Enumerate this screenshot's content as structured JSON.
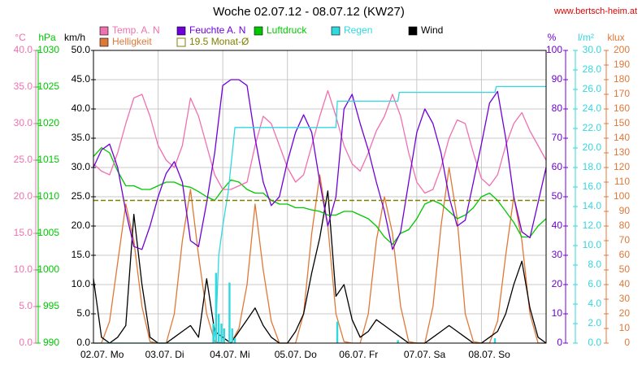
{
  "chart_data": {
    "type": "line",
    "title": "Woche 02.07.12 - 08.07.12 (KW27)",
    "source": "www.bertsch-heim.at",
    "grid": true,
    "xlim": [
      0,
      168
    ],
    "xticks": [
      {
        "value": 0,
        "label": "02.07. Mo"
      },
      {
        "value": 24,
        "label": "03.07. Di"
      },
      {
        "value": 48,
        "label": "04.07. Mi"
      },
      {
        "value": 72,
        "label": "05.07. Do"
      },
      {
        "value": 96,
        "label": "06.07. Fr"
      },
      {
        "value": 120,
        "label": "07.07. Sa"
      },
      {
        "value": 144,
        "label": "08.07. So"
      }
    ],
    "x": [
      0,
      3,
      6,
      9,
      12,
      15,
      18,
      21,
      24,
      27,
      30,
      33,
      36,
      39,
      42,
      45,
      48,
      51,
      54,
      57,
      60,
      63,
      66,
      69,
      72,
      75,
      78,
      81,
      84,
      87,
      90,
      93,
      96,
      99,
      102,
      105,
      108,
      111,
      114,
      117,
      120,
      123,
      126,
      129,
      132,
      135,
      138,
      141,
      144,
      147,
      150,
      153,
      156,
      159,
      162,
      165,
      168
    ],
    "axes": {
      "temp": {
        "unit": "°C",
        "color": "#f070b0",
        "lim": [
          0,
          40
        ],
        "ticks": [
          {
            "value": 0,
            "label": "0.0"
          },
          {
            "value": 5,
            "label": "5.0"
          },
          {
            "value": 10,
            "label": "10.0"
          },
          {
            "value": 15,
            "label": "15.0"
          },
          {
            "value": 20,
            "label": "20.0"
          },
          {
            "value": 25,
            "label": "25.0"
          },
          {
            "value": 30,
            "label": "30.0"
          },
          {
            "value": 35,
            "label": "35.0"
          },
          {
            "value": 40,
            "label": "40.0"
          }
        ]
      },
      "pres": {
        "unit": "hPa",
        "color": "#00c800",
        "lim": [
          990,
          1030
        ],
        "ticks": [
          990,
          995,
          1000,
          1005,
          1010,
          1015,
          1020,
          1025,
          1030
        ]
      },
      "wind": {
        "unit": "km/h",
        "color": "#000000",
        "lim": [
          0,
          50
        ],
        "ticks": [
          {
            "value": 0,
            "label": "0.0"
          },
          {
            "value": 5,
            "label": "5.0"
          },
          {
            "value": 10,
            "label": "10.0"
          },
          {
            "value": 15,
            "label": "15.0"
          },
          {
            "value": 20,
            "label": "20.0"
          },
          {
            "value": 25,
            "label": "25.0"
          },
          {
            "value": 30,
            "label": "30.0"
          },
          {
            "value": 35,
            "label": "35.0"
          },
          {
            "value": 40,
            "label": "40.0"
          },
          {
            "value": 45,
            "label": "45.0"
          },
          {
            "value": 50,
            "label": "50.0"
          }
        ]
      },
      "hum": {
        "unit": "%",
        "color": "#7000d8",
        "lim": [
          0,
          100
        ],
        "ticks": [
          0,
          10,
          20,
          30,
          40,
          50,
          60,
          70,
          80,
          90,
          100
        ]
      },
      "rain": {
        "unit": "l/m²",
        "color": "#30d8e0",
        "lim": [
          0,
          30
        ],
        "ticks": [
          {
            "value": 0,
            "label": "0.0"
          },
          {
            "value": 2,
            "label": "2.0"
          },
          {
            "value": 4,
            "label": "4.0"
          },
          {
            "value": 6,
            "label": "6.0"
          },
          {
            "value": 8,
            "label": "8.0"
          },
          {
            "value": 10,
            "label": "10.0"
          },
          {
            "value": 12,
            "label": "12.0"
          },
          {
            "value": 14,
            "label": "14.0"
          },
          {
            "value": 16,
            "label": "16.0"
          },
          {
            "value": 18,
            "label": "18.0"
          },
          {
            "value": 20,
            "label": "20.0"
          },
          {
            "value": 22,
            "label": "22.0"
          },
          {
            "value": 24,
            "label": "24.0"
          },
          {
            "value": 26,
            "label": "26.0"
          },
          {
            "value": 28,
            "label": "28.0"
          },
          {
            "value": 30,
            "label": "30.0"
          }
        ]
      },
      "lux": {
        "unit": "klux",
        "color": "#e07838",
        "lim": [
          0,
          200
        ],
        "ticks": [
          0,
          10,
          20,
          30,
          40,
          50,
          60,
          70,
          80,
          90,
          100,
          110,
          120,
          130,
          140,
          150,
          160,
          170,
          180,
          190,
          200
        ]
      }
    },
    "series": [
      {
        "name": "Temp. A. N",
        "color": "#f070b0",
        "axis": "temp",
        "values": [
          24.5,
          23.5,
          23,
          26,
          30,
          33.5,
          34,
          31,
          27,
          25,
          24,
          27,
          33.5,
          31,
          27,
          23,
          21,
          21,
          21.5,
          22,
          27,
          31,
          30,
          27,
          24,
          22,
          23,
          27,
          31,
          34.5,
          31,
          27,
          24.5,
          23.5,
          26,
          29,
          31,
          34,
          31,
          26,
          22,
          20.5,
          21,
          24,
          28,
          30.5,
          30,
          26,
          22.5,
          21.5,
          23,
          27,
          30,
          31.5,
          29,
          27,
          25
        ]
      },
      {
        "name": "Feuchte A. N",
        "color": "#7000d8",
        "axis": "hum",
        "values": [
          60,
          66,
          68,
          60,
          45,
          33,
          32,
          40,
          50,
          58,
          62,
          55,
          35,
          33,
          48,
          65,
          88,
          90,
          90,
          88,
          70,
          55,
          47,
          50,
          62,
          72,
          78,
          72,
          55,
          40,
          50,
          80,
          85,
          75,
          66,
          55,
          45,
          32,
          38,
          55,
          72,
          80,
          75,
          65,
          50,
          40,
          42,
          55,
          68,
          82,
          86,
          70,
          50,
          38,
          36,
          48,
          60
        ]
      },
      {
        "name": "Luftdruck",
        "color": "#00c800",
        "axis": "pres",
        "values": [
          1015.5,
          1016.7,
          1016,
          1013.5,
          1011.5,
          1011.5,
          1011,
          1011,
          1011.5,
          1012,
          1012,
          1011.5,
          1011.3,
          1010.7,
          1010,
          1009.5,
          1011,
          1012.3,
          1012,
          1011,
          1010.5,
          1010.5,
          1009.5,
          1009,
          1009,
          1008.5,
          1008.5,
          1008.2,
          1008,
          1007.5,
          1007.5,
          1008,
          1008,
          1007.5,
          1007,
          1006,
          1004.5,
          1003.5,
          1005,
          1005.5,
          1007,
          1009,
          1009.5,
          1009,
          1008,
          1007,
          1007.5,
          1008.5,
          1010,
          1010.5,
          1009.5,
          1008,
          1006.5,
          1004.5,
          1004.5,
          1006,
          1007
        ]
      },
      {
        "name": "Regen",
        "color": "#30d8e0",
        "axis": "rain",
        "x": [
          0,
          44.5,
          45.5,
          46.5,
          48,
          50,
          52.5,
          90,
          90.5,
          113,
          113.5,
          149,
          149.5,
          168
        ],
        "values": [
          0,
          0,
          2,
          9,
          12,
          15.5,
          22.1,
          22.1,
          24.8,
          24.8,
          25.7,
          25.7,
          26.3,
          26.3
        ],
        "bars_x": [
          44.5,
          45.5,
          46.5,
          47.5,
          48.5,
          50.5,
          51.5,
          52.5,
          90.5,
          113,
          149
        ],
        "bars": [
          2,
          7.2,
          3,
          2,
          1.5,
          6.2,
          1.5,
          0.5,
          2.2,
          0.3,
          0.5
        ]
      },
      {
        "name": "Wind",
        "color": "#000000",
        "axis": "wind",
        "values": [
          11,
          1,
          0,
          1,
          3,
          22,
          10,
          1,
          0,
          0,
          1,
          2,
          3,
          1,
          11,
          2,
          1,
          0,
          2,
          4,
          6,
          3,
          1,
          0,
          0,
          2,
          5,
          12,
          18,
          26,
          8,
          10,
          4,
          1,
          2,
          4,
          3,
          2,
          1,
          0,
          0,
          0,
          1,
          2,
          3,
          2,
          1,
          0,
          0,
          1,
          2,
          5,
          10,
          14,
          6,
          1,
          0
        ]
      },
      {
        "name": "Helligkeit",
        "color": "#e07838",
        "axis": "lux",
        "values": [
          0,
          0,
          15,
          55,
          95,
          70,
          25,
          1,
          0,
          0,
          20,
          70,
          105,
          60,
          20,
          1,
          0,
          0,
          10,
          40,
          95,
          50,
          15,
          0,
          0,
          0,
          20,
          75,
          115,
          80,
          20,
          1,
          0,
          0,
          20,
          70,
          100,
          75,
          25,
          1,
          0,
          0,
          25,
          80,
          120,
          85,
          20,
          1,
          0,
          0,
          15,
          60,
          100,
          70,
          20,
          0,
          0
        ]
      }
    ],
    "monthly_avg": {
      "value": 19.5,
      "label": "19.5 Monat-Ø",
      "color": "#808000",
      "axis": "temp"
    }
  }
}
